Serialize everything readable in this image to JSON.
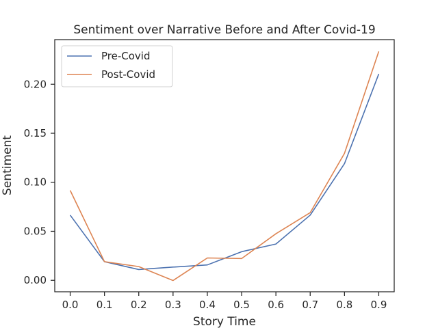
{
  "chart_data": {
    "type": "line",
    "title": "Sentiment over Narrative Before and After Covid-19",
    "xlabel": "Story Time",
    "ylabel": "Sentiment",
    "x": [
      0.0,
      0.1,
      0.2,
      0.3,
      0.4,
      0.5,
      0.6,
      0.7,
      0.8,
      0.9
    ],
    "xticks": [
      "0.0",
      "0.1",
      "0.2",
      "0.3",
      "0.4",
      "0.5",
      "0.6",
      "0.7",
      "0.8",
      "0.9"
    ],
    "yticks": [
      "0.00",
      "0.05",
      "0.10",
      "0.15",
      "0.20"
    ],
    "xlim": [
      -0.045,
      0.945
    ],
    "ylim": [
      -0.0117,
      0.2455
    ],
    "grid": false,
    "legend_position": "top-left",
    "series": [
      {
        "name": "Pre-Covid",
        "color": "#4c72b0",
        "values": [
          0.0665,
          0.019,
          0.011,
          0.0135,
          0.0157,
          0.0292,
          0.037,
          0.0665,
          0.119,
          0.2105
        ]
      },
      {
        "name": "Post-Covid",
        "color": "#dd8452",
        "values": [
          0.0917,
          0.019,
          0.014,
          -0.0002,
          0.0228,
          0.0222,
          0.0475,
          0.069,
          0.1295,
          0.2335
        ]
      }
    ]
  }
}
